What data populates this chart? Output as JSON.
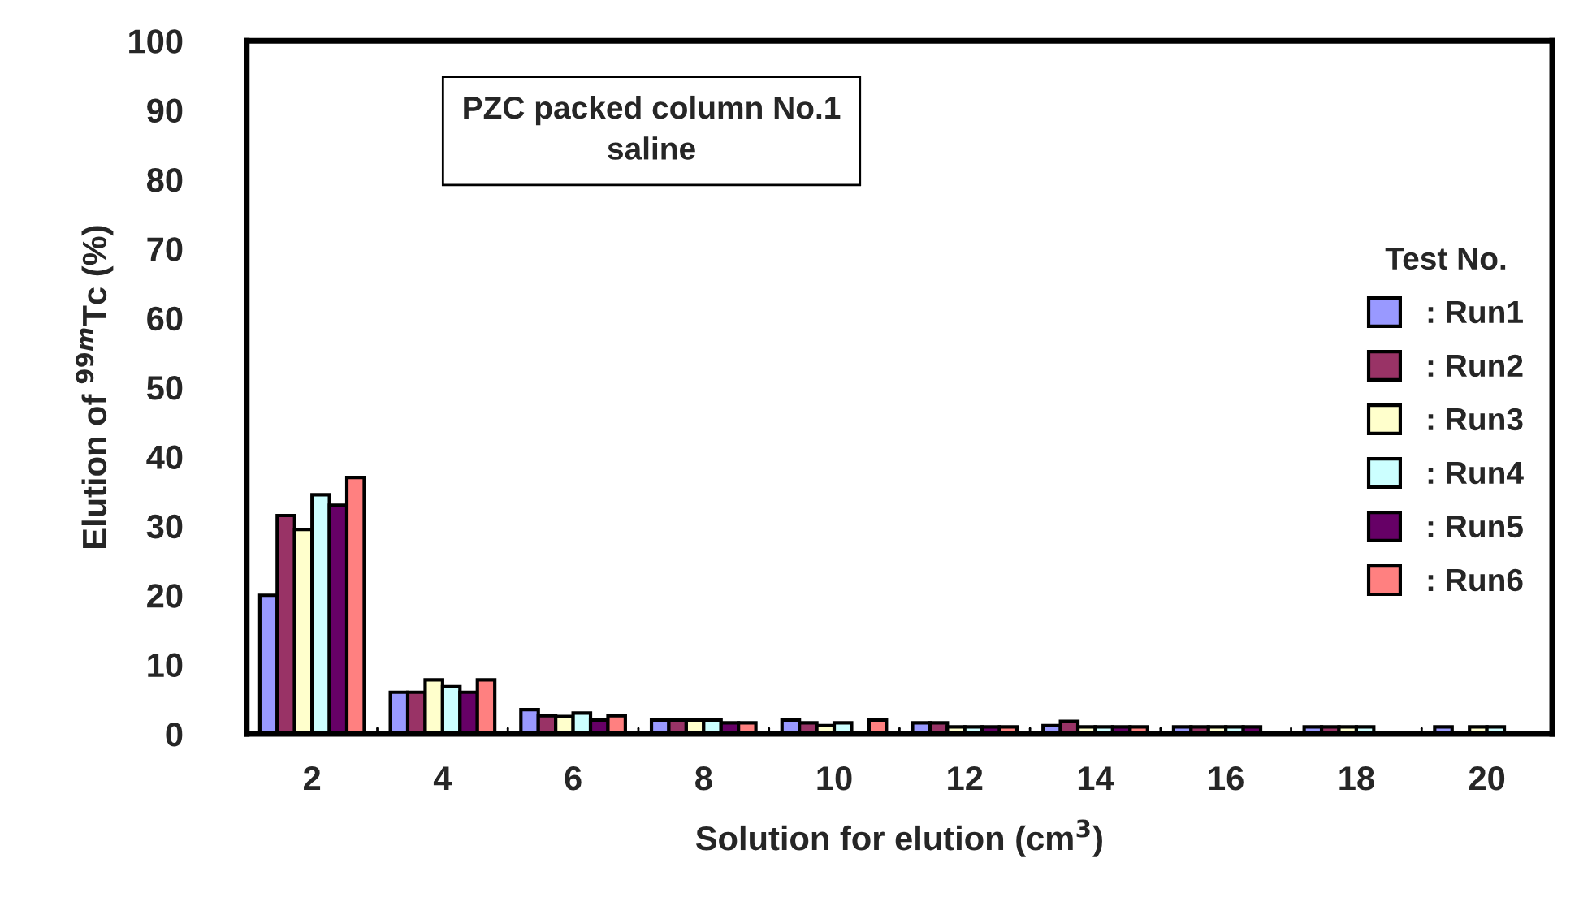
{
  "chart_data": {
    "type": "bar",
    "title": "PZC packed column No.1\nsaline",
    "xlabel": "Solution for elution (cm$^{3}$)",
    "ylabel": "Elution of $^{99m}$Tc (%)",
    "legend_title": "Test No.",
    "legend": "right",
    "categories": [
      "2",
      "4",
      "6",
      "8",
      "10",
      "12",
      "14",
      "16",
      "18",
      "20"
    ],
    "ylim": [
      0,
      100
    ],
    "yticks": [
      0,
      10,
      20,
      30,
      40,
      50,
      60,
      70,
      80,
      90,
      100
    ],
    "grid": false,
    "series": [
      {
        "name": ": Run1",
        "color": "#9999ff",
        "values": [
          20,
          6,
          3.5,
          2,
          2,
          1.6,
          1.2,
          1,
          1,
          1
        ]
      },
      {
        "name": ": Run2",
        "color": "#993366",
        "values": [
          31.5,
          6,
          2.6,
          2,
          1.6,
          1.6,
          1.8,
          1,
          1,
          null
        ]
      },
      {
        "name": ": Run3",
        "color": "#ffffcc",
        "values": [
          29.5,
          7.8,
          2.5,
          2,
          1.2,
          1,
          1,
          1,
          1,
          1
        ]
      },
      {
        "name": ": Run4",
        "color": "#ccffff",
        "values": [
          34.5,
          6.8,
          3,
          2,
          1.6,
          1,
          1,
          1,
          1,
          1
        ]
      },
      {
        "name": ": Run5",
        "color": "#660066",
        "values": [
          33,
          6,
          2,
          1.6,
          null,
          1,
          1,
          1,
          null,
          null
        ]
      },
      {
        "name": ": Run6",
        "color": "#ff8080",
        "values": [
          37,
          7.8,
          2.6,
          1.6,
          2,
          1,
          1,
          null,
          null,
          null
        ]
      }
    ]
  }
}
